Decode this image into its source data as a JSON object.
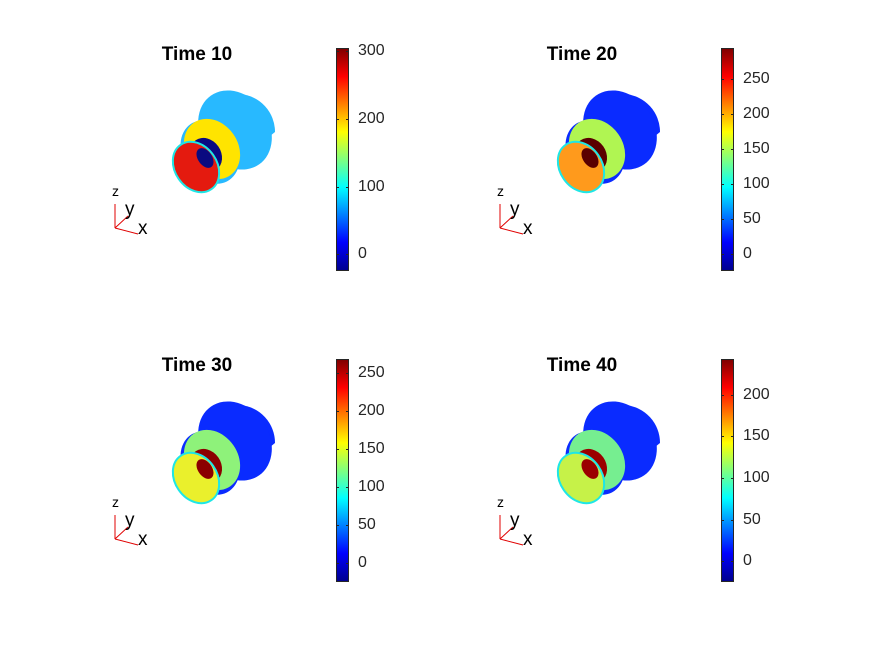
{
  "chart_data": [
    {
      "type": "heatmap",
      "title": "Time 10",
      "colorbar_ticks": [
        0,
        100,
        200,
        300
      ],
      "clim": [
        -25,
        305
      ],
      "triad_labels": {
        "z": "z",
        "y": "y",
        "x": "x"
      },
      "colors": {
        "inner_face": "#e41a0f",
        "front_ring": "#ffe400",
        "body": "#28b9ff",
        "hole": "#0a0a80"
      }
    },
    {
      "type": "heatmap",
      "title": "Time 20",
      "colorbar_ticks": [
        0,
        50,
        100,
        150,
        200,
        250
      ],
      "clim": [
        -25,
        295
      ],
      "triad_labels": {
        "z": "z",
        "y": "y",
        "x": "x"
      },
      "colors": {
        "inner_face": "#ff9a1c",
        "front_ring": "#b0f552",
        "body": "#0a2bff",
        "hole": "#5a0000"
      }
    },
    {
      "type": "heatmap",
      "title": "Time 30",
      "colorbar_ticks": [
        0,
        50,
        100,
        150,
        200,
        250
      ],
      "clim": [
        -25,
        268
      ],
      "triad_labels": {
        "z": "z",
        "y": "y",
        "x": "x"
      },
      "colors": {
        "inner_face": "#eaf02c",
        "front_ring": "#8ef27a",
        "body": "#0a2bff",
        "hole": "#8b0000"
      }
    },
    {
      "type": "heatmap",
      "title": "Time 40",
      "colorbar_ticks": [
        0,
        50,
        100,
        150,
        200
      ],
      "clim": [
        -25,
        243
      ],
      "triad_labels": {
        "z": "z",
        "y": "y",
        "x": "x"
      },
      "colors": {
        "inner_face": "#c6f248",
        "front_ring": "#76ee90",
        "body": "#0a2bff",
        "hole": "#9b0000"
      }
    }
  ]
}
